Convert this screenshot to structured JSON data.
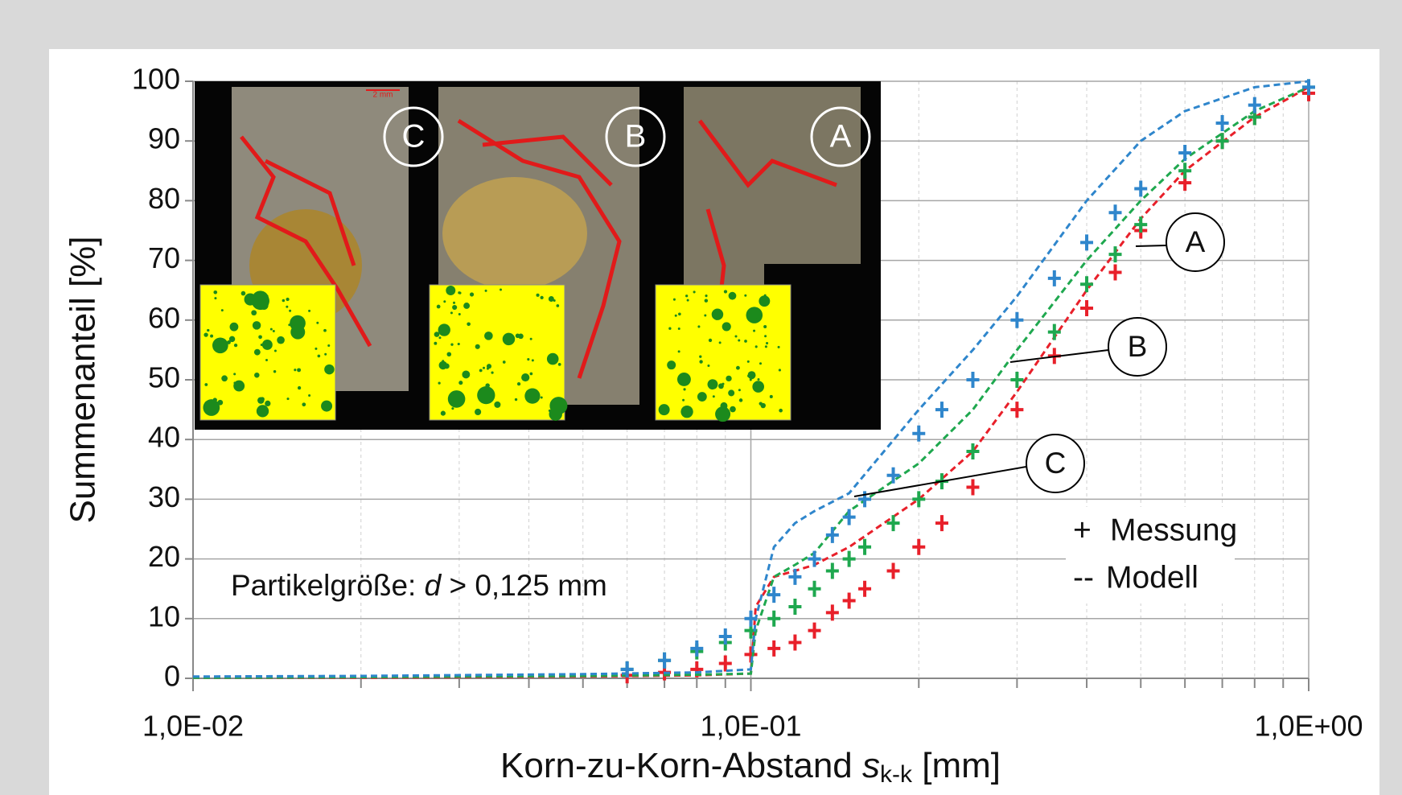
{
  "chart_data": {
    "type": "line",
    "x_label_parts": [
      "Korn-zu-Korn-Abstand ",
      "s",
      "k-k",
      " [mm]"
    ],
    "y_label": "Summenanteil [%]",
    "annotation_parts": [
      "Partikelgröße: ",
      "d",
      " > 0,125 mm"
    ],
    "legend": [
      {
        "symbol": "+",
        "label": "Messung"
      },
      {
        "symbol": "--",
        "label": "Modell"
      }
    ],
    "scale_bar": "2 mm",
    "log_x": true,
    "grid": true,
    "xlim": [
      0.01,
      1
    ],
    "xticks": [
      {
        "value": 0.01,
        "label": "1,0E-02"
      },
      {
        "value": 0.1,
        "label": "1,0E-01"
      },
      {
        "value": 1,
        "label": "1,0E+00"
      }
    ],
    "ylim": [
      0,
      100
    ],
    "yticks": [
      0,
      10,
      20,
      30,
      40,
      50,
      60,
      70,
      80,
      90,
      100
    ],
    "x_measured": [
      0.06,
      0.07,
      0.08,
      0.09,
      0.1,
      0.11,
      0.12,
      0.13,
      0.14,
      0.15,
      0.16,
      0.18,
      0.2,
      0.22,
      0.25,
      0.3,
      0.35,
      0.4,
      0.45,
      0.5,
      0.6,
      0.7,
      0.8,
      1.0
    ],
    "x_model": [
      0.01,
      0.02,
      0.05,
      0.08,
      0.1,
      0.102,
      0.11,
      0.12,
      0.13,
      0.15,
      0.2,
      0.25,
      0.3,
      0.4,
      0.5,
      0.6,
      0.8,
      1.0
    ],
    "series": [
      {
        "name": "A",
        "color": "#e8202a",
        "measured": [
          0.5,
          1,
          1.5,
          2.5,
          4,
          5,
          6,
          8,
          11,
          13,
          15,
          18,
          22,
          26,
          32,
          45,
          54,
          62,
          68,
          75,
          83,
          90,
          94,
          98
        ],
        "model": [
          0.1,
          0.1,
          0.3,
          0.5,
          0.8,
          12,
          17,
          18,
          19,
          22,
          30,
          38,
          48,
          65,
          77,
          85,
          94,
          99
        ]
      },
      {
        "name": "B",
        "color": "#1fa84f",
        "measured": [
          1.5,
          3,
          4.5,
          6,
          8,
          10,
          12,
          15,
          18,
          20,
          22,
          26,
          30,
          33,
          38,
          50,
          58,
          66,
          71,
          76,
          85,
          90,
          94,
          99
        ],
        "model": [
          0.1,
          0.2,
          0.4,
          0.6,
          0.8,
          8,
          17,
          19,
          21,
          28,
          36,
          45,
          55,
          70,
          80,
          87,
          95,
          99
        ]
      },
      {
        "name": "C",
        "color": "#2f86cc",
        "measured": [
          1.5,
          3,
          5,
          7,
          10,
          14,
          17,
          20,
          24,
          27,
          30,
          34,
          41,
          45,
          50,
          60,
          67,
          73,
          78,
          82,
          88,
          93,
          96,
          99
        ],
        "model": [
          0.3,
          0.4,
          0.7,
          1,
          1.5,
          10,
          22,
          26,
          28,
          31,
          45,
          55,
          64,
          80,
          90,
          95,
          99,
          100
        ]
      }
    ]
  }
}
